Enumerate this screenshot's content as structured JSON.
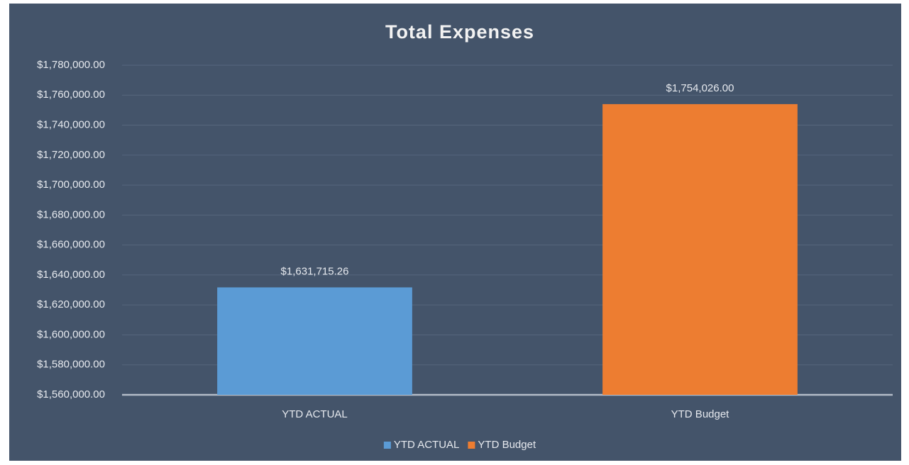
{
  "chart_data": {
    "type": "bar",
    "title": "Total Expenses",
    "categories": [
      "YTD ACTUAL",
      "YTD Budget"
    ],
    "values": [
      1631715.26,
      1754026
    ],
    "value_labels": [
      "$1,631,715.26",
      "$1,754,026.00"
    ],
    "colors": [
      "#5b9bd5",
      "#ed7d31"
    ],
    "ylim": [
      1560000,
      1780000
    ],
    "yticks": [
      {
        "value": 1560000,
        "label": "$1,560,000.00"
      },
      {
        "value": 1580000,
        "label": "$1,580,000.00"
      },
      {
        "value": 1600000,
        "label": "$1,600,000.00"
      },
      {
        "value": 1620000,
        "label": "$1,620,000.00"
      },
      {
        "value": 1640000,
        "label": "$1,640,000.00"
      },
      {
        "value": 1660000,
        "label": "$1,660,000.00"
      },
      {
        "value": 1680000,
        "label": "$1,680,000.00"
      },
      {
        "value": 1700000,
        "label": "$1,700,000.00"
      },
      {
        "value": 1720000,
        "label": "$1,720,000.00"
      },
      {
        "value": 1740000,
        "label": "$1,740,000.00"
      },
      {
        "value": 1760000,
        "label": "$1,760,000.00"
      },
      {
        "value": 1780000,
        "label": "$1,780,000.00"
      }
    ],
    "grid": true,
    "legend": "bottom"
  }
}
